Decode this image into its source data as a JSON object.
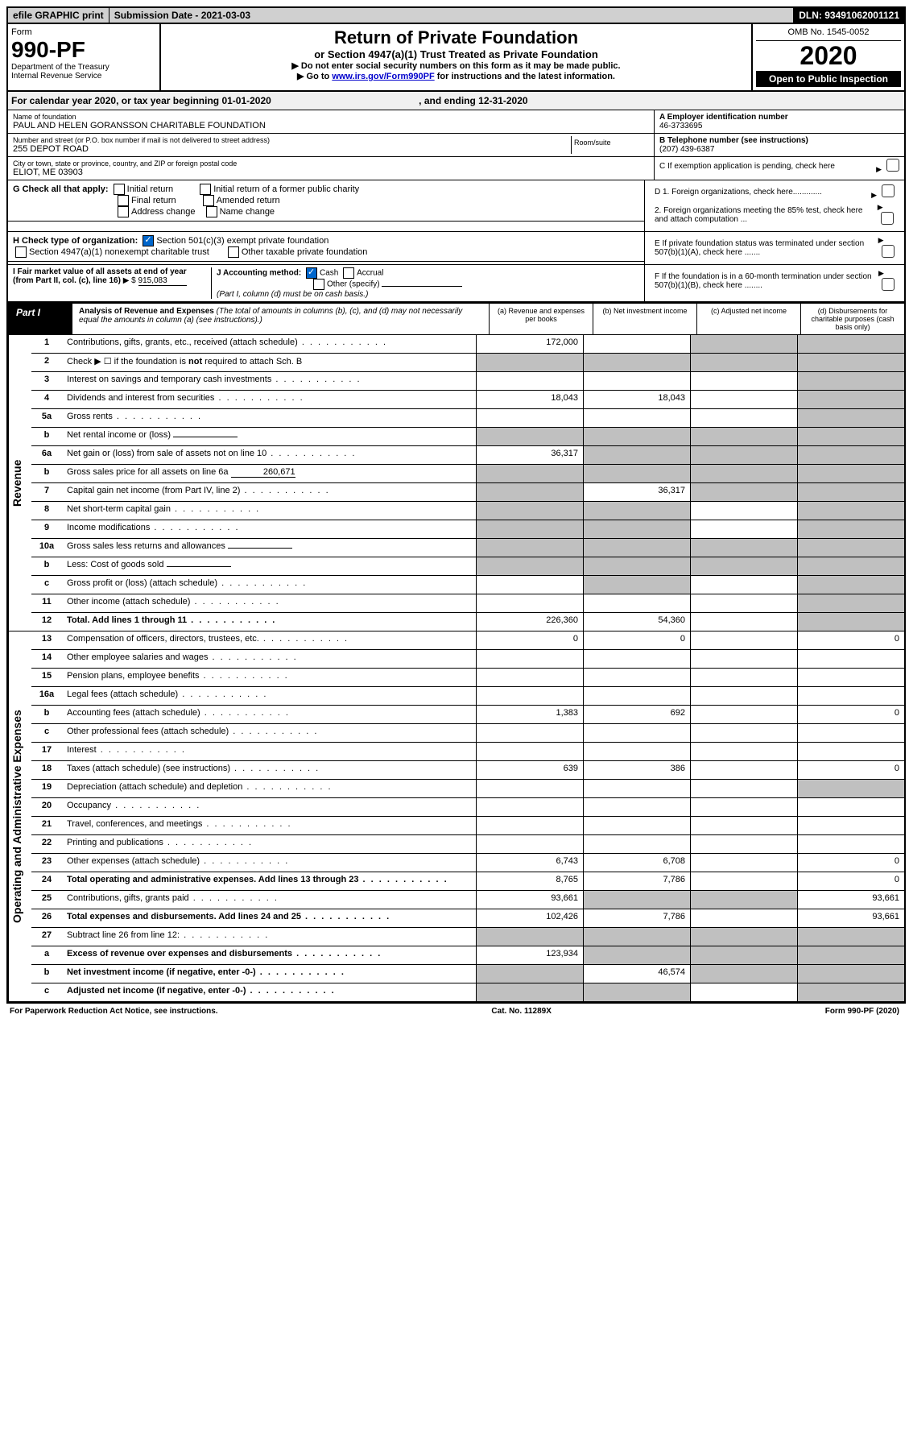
{
  "topbar": {
    "efile": "efile GRAPHIC print",
    "submission": "Submission Date - 2021-03-03",
    "dln": "DLN: 93491062001121"
  },
  "header": {
    "form_label": "Form",
    "form_number": "990-PF",
    "dept1": "Department of the Treasury",
    "dept2": "Internal Revenue Service",
    "title": "Return of Private Foundation",
    "subtitle": "or Section 4947(a)(1) Trust Treated as Private Foundation",
    "instr1": "▶ Do not enter social security numbers on this form as it may be made public.",
    "instr2_pre": "▶ Go to ",
    "instr2_link": "www.irs.gov/Form990PF",
    "instr2_post": " for instructions and the latest information.",
    "omb": "OMB No. 1545-0052",
    "year": "2020",
    "open": "Open to Public Inspection"
  },
  "calendar": {
    "text": "For calendar year 2020, or tax year beginning 01-01-2020",
    "ending": ", and ending 12-31-2020"
  },
  "entity": {
    "name_label": "Name of foundation",
    "name": "PAUL AND HELEN GORANSSON CHARITABLE FOUNDATION",
    "addr_label": "Number and street (or P.O. box number if mail is not delivered to street address)",
    "addr": "255 DEPOT ROAD",
    "room_label": "Room/suite",
    "city_label": "City or town, state or province, country, and ZIP or foreign postal code",
    "city": "ELIOT, ME  03903",
    "ein_label": "A Employer identification number",
    "ein": "46-3733695",
    "tel_label": "B Telephone number (see instructions)",
    "tel": "(207) 439-6387",
    "c_label": "C  If exemption application is pending, check here"
  },
  "checks": {
    "g_label": "G Check all that apply:",
    "g_initial": "Initial return",
    "g_initial_former": "Initial return of a former public charity",
    "g_final": "Final return",
    "g_amended": "Amended return",
    "g_addr": "Address change",
    "g_name": "Name change",
    "h_label": "H Check type of organization:",
    "h_501c3": "Section 501(c)(3) exempt private foundation",
    "h_4947": "Section 4947(a)(1) nonexempt charitable trust",
    "h_other": "Other taxable private foundation",
    "i_label": "I Fair market value of all assets at end of year (from Part II, col. (c), line 16)",
    "i_prefix": "▶ $",
    "i_value": "915,083",
    "j_label": "J Accounting method:",
    "j_cash": "Cash",
    "j_accrual": "Accrual",
    "j_other": "Other (specify)",
    "j_note": "(Part I, column (d) must be on cash basis.)",
    "d1": "D 1. Foreign organizations, check here.............",
    "d2": "2. Foreign organizations meeting the 85% test, check here and attach computation ...",
    "e_label": "E  If private foundation status was terminated under section 507(b)(1)(A), check here .......",
    "f_label": "F  If the foundation is in a 60-month termination under section 507(b)(1)(B), check here ........"
  },
  "part1": {
    "label": "Part I",
    "title": "Analysis of Revenue and Expenses",
    "note": "(The total of amounts in columns (b), (c), and (d) may not necessarily equal the amounts in column (a) (see instructions).)",
    "col_a": "(a) Revenue and expenses per books",
    "col_b": "(b) Net investment income",
    "col_c": "(c) Adjusted net income",
    "col_d": "(d) Disbursements for charitable purposes (cash basis only)"
  },
  "sections": {
    "revenue": "Revenue",
    "expenses": "Operating and Administrative Expenses"
  },
  "rows": [
    {
      "n": "1",
      "d": "Contributions, gifts, grants, etc., received (attach schedule)",
      "a": "172,000",
      "b": "",
      "c": "shaded",
      "dd": "shaded"
    },
    {
      "n": "2",
      "d": "Check ▶ ☐ if the foundation is not required to attach Sch. B",
      "a": "shaded",
      "b": "shaded",
      "c": "shaded",
      "dd": "shaded",
      "nodots": true
    },
    {
      "n": "3",
      "d": "Interest on savings and temporary cash investments",
      "a": "",
      "b": "",
      "c": "",
      "dd": "shaded"
    },
    {
      "n": "4",
      "d": "Dividends and interest from securities",
      "a": "18,043",
      "b": "18,043",
      "c": "",
      "dd": "shaded"
    },
    {
      "n": "5a",
      "d": "Gross rents",
      "a": "",
      "b": "",
      "c": "",
      "dd": "shaded"
    },
    {
      "n": "b",
      "d": "Net rental income or (loss)",
      "a": "shaded",
      "b": "shaded",
      "c": "shaded",
      "dd": "shaded",
      "inline": true
    },
    {
      "n": "6a",
      "d": "Net gain or (loss) from sale of assets not on line 10",
      "a": "36,317",
      "b": "shaded",
      "c": "shaded",
      "dd": "shaded"
    },
    {
      "n": "b",
      "d": "Gross sales price for all assets on line 6a",
      "a": "shaded",
      "b": "shaded",
      "c": "shaded",
      "dd": "shaded",
      "inline": true,
      "inlineval": "260,671"
    },
    {
      "n": "7",
      "d": "Capital gain net income (from Part IV, line 2)",
      "a": "shaded",
      "b": "36,317",
      "c": "shaded",
      "dd": "shaded"
    },
    {
      "n": "8",
      "d": "Net short-term capital gain",
      "a": "shaded",
      "b": "shaded",
      "c": "",
      "dd": "shaded"
    },
    {
      "n": "9",
      "d": "Income modifications",
      "a": "shaded",
      "b": "shaded",
      "c": "",
      "dd": "shaded"
    },
    {
      "n": "10a",
      "d": "Gross sales less returns and allowances",
      "a": "shaded",
      "b": "shaded",
      "c": "shaded",
      "dd": "shaded",
      "inline": true
    },
    {
      "n": "b",
      "d": "Less: Cost of goods sold",
      "a": "shaded",
      "b": "shaded",
      "c": "shaded",
      "dd": "shaded",
      "inline": true
    },
    {
      "n": "c",
      "d": "Gross profit or (loss) (attach schedule)",
      "a": "",
      "b": "shaded",
      "c": "",
      "dd": "shaded"
    },
    {
      "n": "11",
      "d": "Other income (attach schedule)",
      "a": "",
      "b": "",
      "c": "",
      "dd": "shaded"
    },
    {
      "n": "12",
      "d": "Total. Add lines 1 through 11",
      "a": "226,360",
      "b": "54,360",
      "c": "",
      "dd": "shaded",
      "bold": true
    }
  ],
  "exp_rows": [
    {
      "n": "13",
      "d": "Compensation of officers, directors, trustees, etc.",
      "a": "0",
      "b": "0",
      "c": "",
      "dd": "0"
    },
    {
      "n": "14",
      "d": "Other employee salaries and wages",
      "a": "",
      "b": "",
      "c": "",
      "dd": ""
    },
    {
      "n": "15",
      "d": "Pension plans, employee benefits",
      "a": "",
      "b": "",
      "c": "",
      "dd": ""
    },
    {
      "n": "16a",
      "d": "Legal fees (attach schedule)",
      "a": "",
      "b": "",
      "c": "",
      "dd": ""
    },
    {
      "n": "b",
      "d": "Accounting fees (attach schedule)",
      "a": "1,383",
      "b": "692",
      "c": "",
      "dd": "0"
    },
    {
      "n": "c",
      "d": "Other professional fees (attach schedule)",
      "a": "",
      "b": "",
      "c": "",
      "dd": ""
    },
    {
      "n": "17",
      "d": "Interest",
      "a": "",
      "b": "",
      "c": "",
      "dd": ""
    },
    {
      "n": "18",
      "d": "Taxes (attach schedule) (see instructions)",
      "a": "639",
      "b": "386",
      "c": "",
      "dd": "0"
    },
    {
      "n": "19",
      "d": "Depreciation (attach schedule) and depletion",
      "a": "",
      "b": "",
      "c": "",
      "dd": "shaded"
    },
    {
      "n": "20",
      "d": "Occupancy",
      "a": "",
      "b": "",
      "c": "",
      "dd": ""
    },
    {
      "n": "21",
      "d": "Travel, conferences, and meetings",
      "a": "",
      "b": "",
      "c": "",
      "dd": ""
    },
    {
      "n": "22",
      "d": "Printing and publications",
      "a": "",
      "b": "",
      "c": "",
      "dd": ""
    },
    {
      "n": "23",
      "d": "Other expenses (attach schedule)",
      "a": "6,743",
      "b": "6,708",
      "c": "",
      "dd": "0"
    },
    {
      "n": "24",
      "d": "Total operating and administrative expenses. Add lines 13 through 23",
      "a": "8,765",
      "b": "7,786",
      "c": "",
      "dd": "0",
      "bold": true
    },
    {
      "n": "25",
      "d": "Contributions, gifts, grants paid",
      "a": "93,661",
      "b": "shaded",
      "c": "shaded",
      "dd": "93,661"
    },
    {
      "n": "26",
      "d": "Total expenses and disbursements. Add lines 24 and 25",
      "a": "102,426",
      "b": "7,786",
      "c": "",
      "dd": "93,661",
      "bold": true
    },
    {
      "n": "27",
      "d": "Subtract line 26 from line 12:",
      "a": "shaded",
      "b": "shaded",
      "c": "shaded",
      "dd": "shaded"
    },
    {
      "n": "a",
      "d": "Excess of revenue over expenses and disbursements",
      "a": "123,934",
      "b": "shaded",
      "c": "shaded",
      "dd": "shaded",
      "bold": true
    },
    {
      "n": "b",
      "d": "Net investment income (if negative, enter -0-)",
      "a": "shaded",
      "b": "46,574",
      "c": "shaded",
      "dd": "shaded",
      "bold": true
    },
    {
      "n": "c",
      "d": "Adjusted net income (if negative, enter -0-)",
      "a": "shaded",
      "b": "shaded",
      "c": "",
      "dd": "shaded",
      "bold": true
    }
  ],
  "footer": {
    "left": "For Paperwork Reduction Act Notice, see instructions.",
    "center": "Cat. No. 11289X",
    "right": "Form 990-PF (2020)"
  }
}
